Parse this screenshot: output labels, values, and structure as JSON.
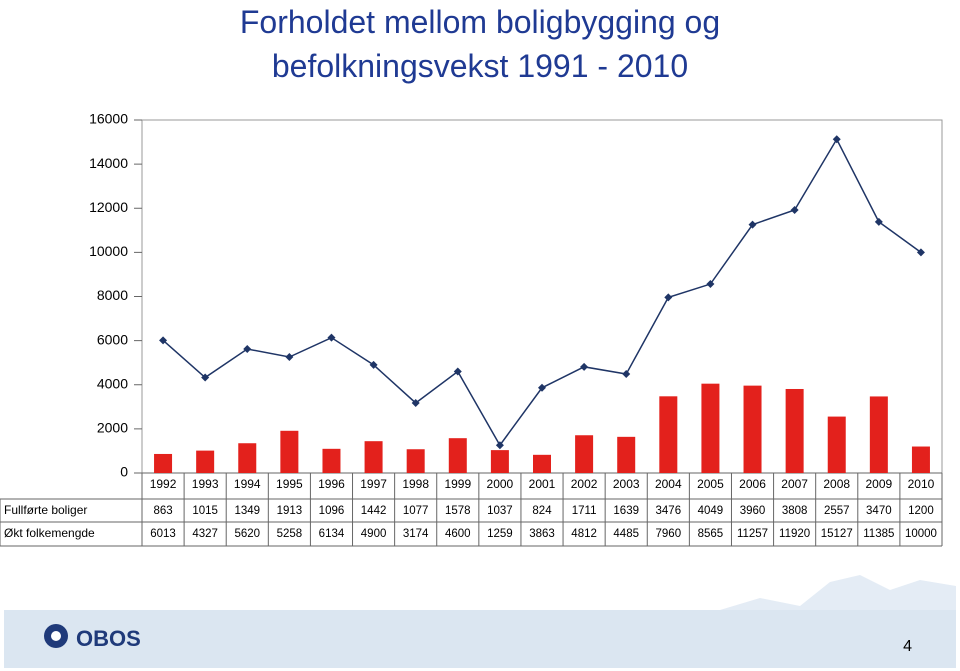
{
  "chart_data": {
    "type": "bar",
    "title": "Forholdet mellom boligbygging og befolkningsvekst 1991 - 2010",
    "categories": [
      "1992",
      "1993",
      "1994",
      "1995",
      "1996",
      "1997",
      "1998",
      "1999",
      "2000",
      "2001",
      "2002",
      "2003",
      "2004",
      "2005",
      "2006",
      "2007",
      "2008",
      "2009",
      "2010"
    ],
    "series": [
      {
        "name": "Fullførte boliger",
        "type": "bar",
        "color": "#e3211c",
        "values": [
          863,
          1015,
          1349,
          1913,
          1096,
          1442,
          1077,
          1578,
          1037,
          824,
          1711,
          1639,
          3476,
          4049,
          3960,
          3808,
          2557,
          3470,
          1200
        ]
      },
      {
        "name": "Økt folkemengde",
        "type": "line",
        "color": "#1f3566",
        "values": [
          6013,
          4327,
          5620,
          5258,
          6134,
          4900,
          3174,
          4600,
          1259,
          3863,
          4812,
          4485,
          7960,
          8565,
          11257,
          11920,
          15127,
          11385,
          10000
        ]
      }
    ],
    "ylim": [
      0,
      16000
    ],
    "yticks": [
      0,
      2000,
      4000,
      6000,
      8000,
      10000,
      12000,
      14000,
      16000
    ],
    "grid": false
  },
  "footer": {
    "logo": "OBOS",
    "page_number": "4"
  }
}
